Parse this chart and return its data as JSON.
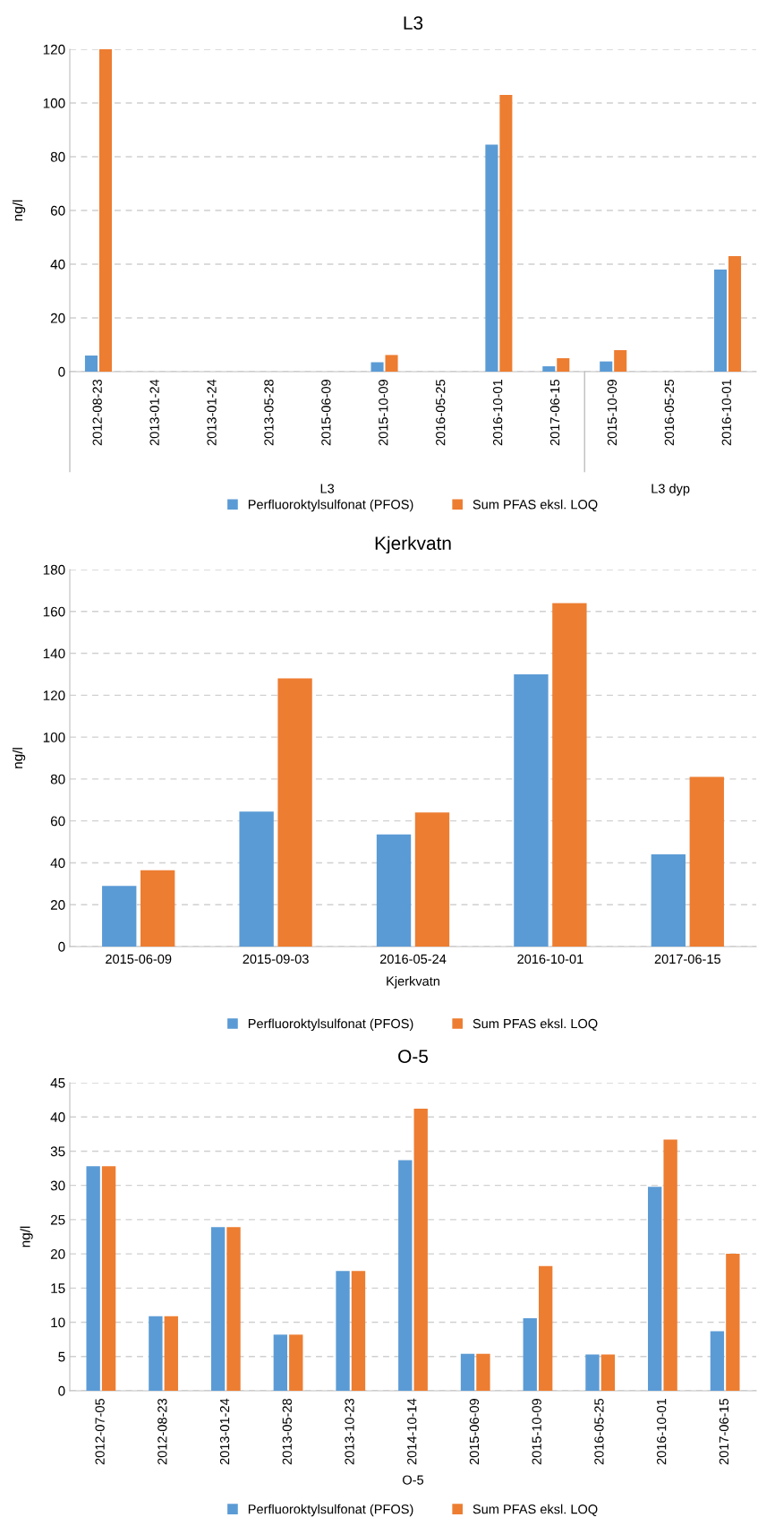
{
  "chart_data": [
    {
      "type": "bar",
      "title": "L3",
      "ylabel": "ng/l",
      "categories": [
        "2012-08-23",
        "2013-01-24",
        "2013-01-24",
        "2013-05-28",
        "2015-06-09",
        "2015-10-09",
        "2016-05-25",
        "2016-10-01",
        "2017-06-15",
        "2015-10-09",
        "2016-05-25",
        "2016-10-01"
      ],
      "series": [
        {
          "name": "Perfluoroktylsulfonat (PFOS)",
          "color": "#5b9bd5",
          "values": [
            6,
            null,
            null,
            null,
            null,
            3.5,
            null,
            84.5,
            2,
            3.8,
            null,
            38
          ]
        },
        {
          "name": "Sum PFAS eksl. LOQ",
          "color": "#ed7d31",
          "values": [
            120,
            null,
            null,
            null,
            null,
            6.2,
            null,
            103,
            5,
            8,
            null,
            43
          ]
        }
      ],
      "annotations": [
        "L3",
        "L3 dyp"
      ],
      "ylim": [
        0,
        120
      ],
      "yticks": [
        0,
        20,
        40,
        60,
        80,
        100,
        120
      ],
      "grid": "y",
      "legend": "bottom"
    },
    {
      "type": "bar",
      "title": "Kjerkvatn",
      "ylabel": "ng/l",
      "xlabel": "Kjerkvatn",
      "categories": [
        "2015-06-09",
        "2015-09-03",
        "2016-05-24",
        "2016-10-01",
        "2017-06-15"
      ],
      "series": [
        {
          "name": "Perfluoroktylsulfonat (PFOS)",
          "color": "#5b9bd5",
          "values": [
            29,
            64.5,
            53.5,
            130,
            44
          ]
        },
        {
          "name": "Sum PFAS eksl. LOQ",
          "color": "#ed7d31",
          "values": [
            36.5,
            128,
            64,
            164,
            81
          ]
        }
      ],
      "ylim": [
        0,
        180
      ],
      "yticks": [
        0,
        20,
        40,
        60,
        80,
        100,
        120,
        140,
        160,
        180
      ],
      "grid": "y",
      "legend": "bottom"
    },
    {
      "type": "bar",
      "title": "O-5",
      "ylabel": "ng/l",
      "xlabel": "O-5",
      "categories": [
        "2012-07-05",
        "2012-08-23",
        "2013-01-24",
        "2013-05-28",
        "2013-10-23",
        "2014-10-14",
        "2015-06-09",
        "2015-10-09",
        "2016-05-25",
        "2016-10-01",
        "2017-06-15"
      ],
      "series": [
        {
          "name": "Perfluoroktylsulfonat (PFOS)",
          "color": "#5b9bd5",
          "values": [
            32.8,
            10.9,
            23.9,
            8.2,
            17.5,
            33.7,
            5.4,
            10.6,
            5.3,
            29.8,
            8.7
          ]
        },
        {
          "name": "Sum PFAS eksl. LOQ",
          "color": "#ed7d31",
          "values": [
            32.8,
            10.9,
            23.9,
            8.2,
            17.5,
            41.2,
            5.4,
            18.2,
            5.3,
            36.7,
            20.0
          ]
        }
      ],
      "ylim": [
        0,
        45
      ],
      "yticks": [
        0,
        5,
        10,
        15,
        20,
        25,
        30,
        35,
        40,
        45
      ],
      "grid": "y",
      "legend": "bottom"
    }
  ]
}
